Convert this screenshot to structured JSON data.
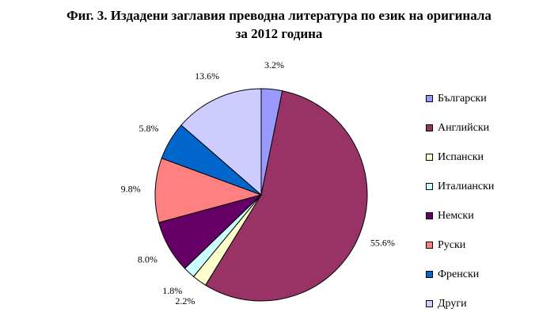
{
  "chart_data": {
    "type": "pie",
    "title_lines": [
      "Фиг. 3. Издадени заглавия преводна литература по език на оригинала",
      "за 2012 година"
    ],
    "slices": [
      {
        "name": "Български",
        "value": 3.2,
        "label": "3.2%",
        "color": "#9999ff"
      },
      {
        "name": "Английски",
        "value": 55.6,
        "label": "55.6%",
        "color": "#993366"
      },
      {
        "name": "Испански",
        "value": 2.2,
        "label": "2.2%",
        "color": "#ffffcc"
      },
      {
        "name": "Италиански",
        "value": 1.8,
        "label": "1.8%",
        "color": "#ccffff"
      },
      {
        "name": "Немски",
        "value": 8.0,
        "label": "8.0%",
        "color": "#660066"
      },
      {
        "name": "Руски",
        "value": 9.8,
        "label": "9.8%",
        "color": "#ff8080"
      },
      {
        "name": "Френски",
        "value": 5.8,
        "label": "5.8%",
        "color": "#0066cc"
      },
      {
        "name": "Други",
        "value": 13.6,
        "label": "13.6%",
        "color": "#ccccff"
      }
    ],
    "start": "12 o'clock",
    "direction": "clockwise",
    "legend_position": "right"
  }
}
